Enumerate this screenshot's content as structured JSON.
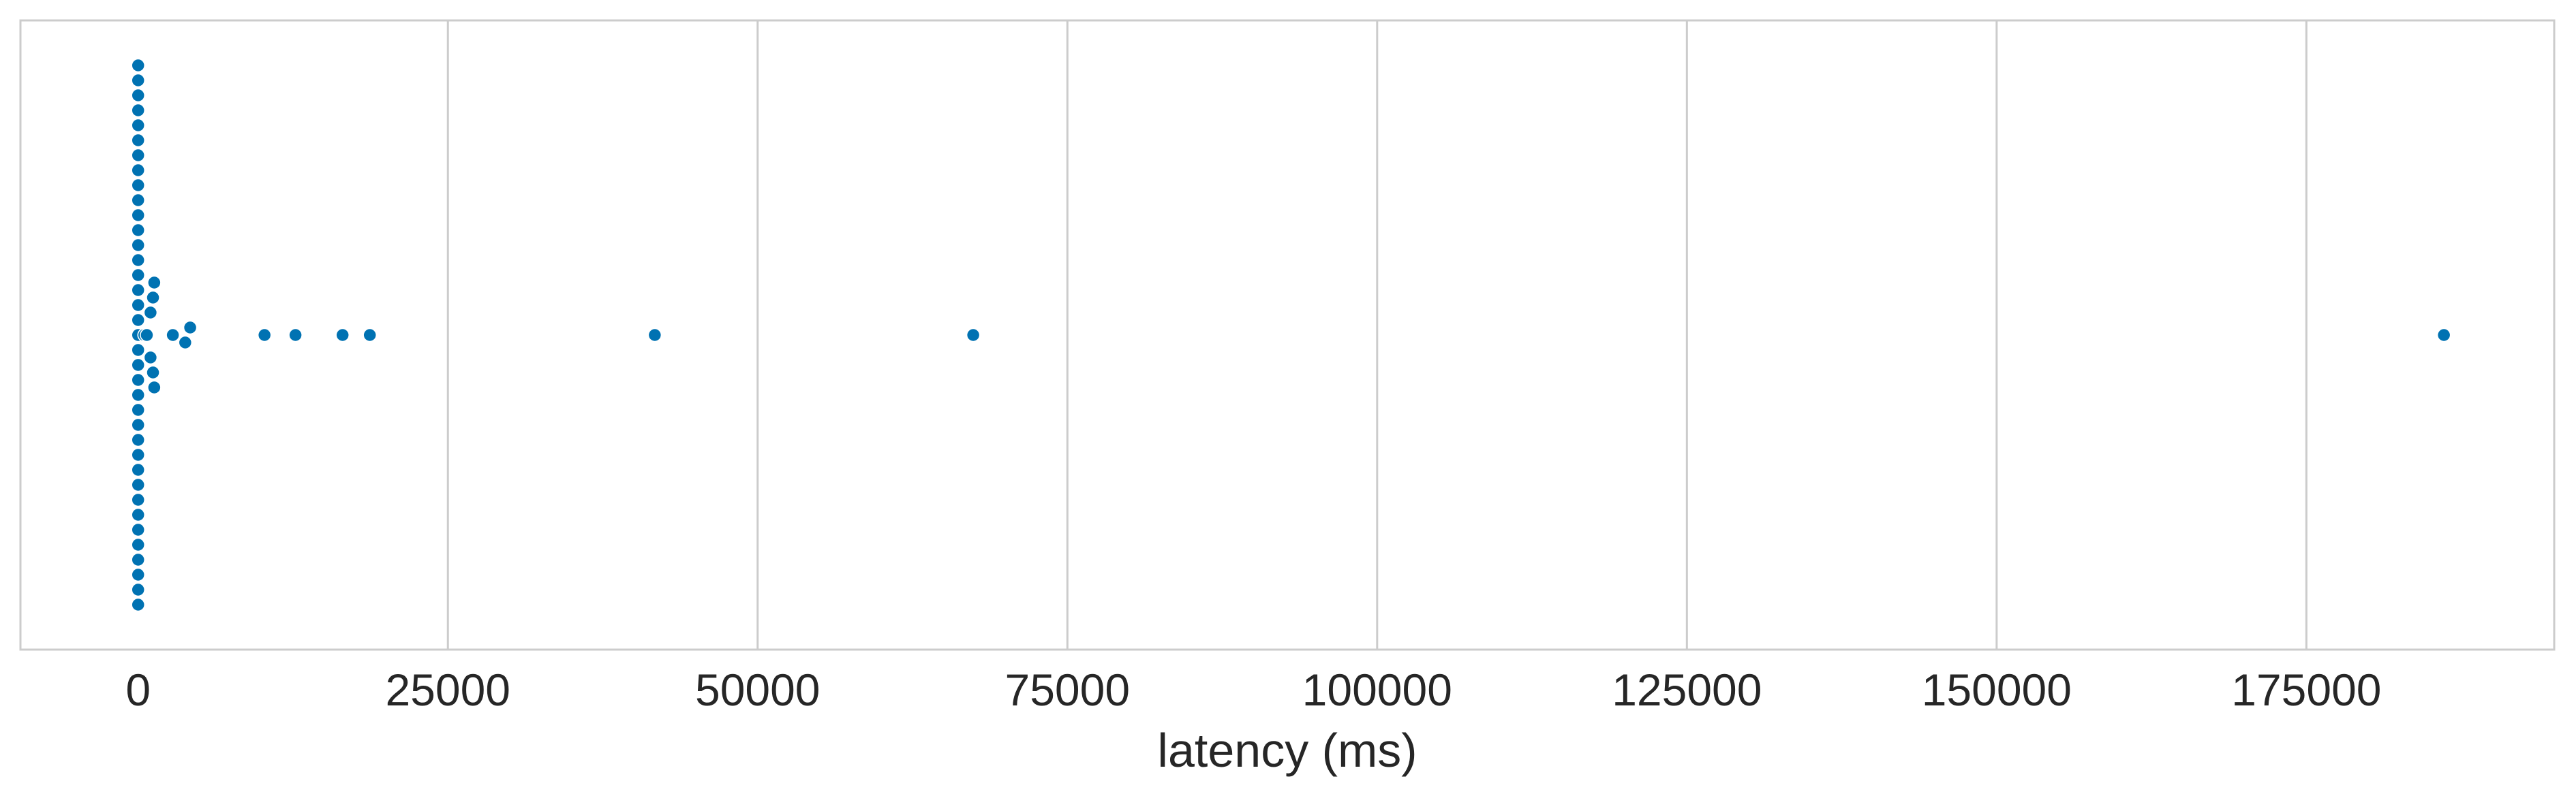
{
  "chart_data": {
    "type": "scatter",
    "subtype": "swarm",
    "title": "",
    "xlabel": "latency (ms)",
    "ylabel": "",
    "xlim": [
      -9500,
      195000
    ],
    "x_ticks": [
      0,
      25000,
      50000,
      75000,
      100000,
      125000,
      150000,
      175000
    ],
    "x_tick_labels": [
      "0",
      "25000",
      "50000",
      "75000",
      "100000",
      "125000",
      "150000",
      "175000"
    ],
    "grid": "vertical",
    "legend": "none",
    "colors": {
      "marker": "#0072b2",
      "grid": "#cccccc",
      "frame": "#cccccc",
      "text": "#262626",
      "background": "#ffffff"
    },
    "series": [
      {
        "values": [
          0,
          0,
          0,
          0,
          0,
          0,
          0,
          0,
          0,
          0,
          0,
          0,
          0,
          0,
          0,
          0,
          0,
          0,
          0,
          0,
          0,
          0,
          0,
          0,
          0,
          0,
          0,
          0,
          0,
          0,
          0,
          0,
          0,
          0,
          0,
          0,
          0,
          0,
          0,
          0,
          0,
          0,
          0,
          0,
          0,
          0,
          0,
          0,
          0,
          0,
          0,
          0,
          0,
          0,
          0,
          0,
          0,
          0,
          0,
          0,
          0,
          0,
          0,
          0,
          0,
          0,
          0,
          0,
          0,
          0,
          0,
          0,
          0,
          0,
          0,
          0,
          0,
          0,
          0,
          0,
          500,
          500,
          700,
          700,
          1000,
          1000,
          1200,
          1200,
          1300,
          1300,
          2800,
          3800,
          4200,
          10200,
          12700,
          16500,
          18700,
          41700,
          67400,
          186100
        ]
      }
    ]
  }
}
